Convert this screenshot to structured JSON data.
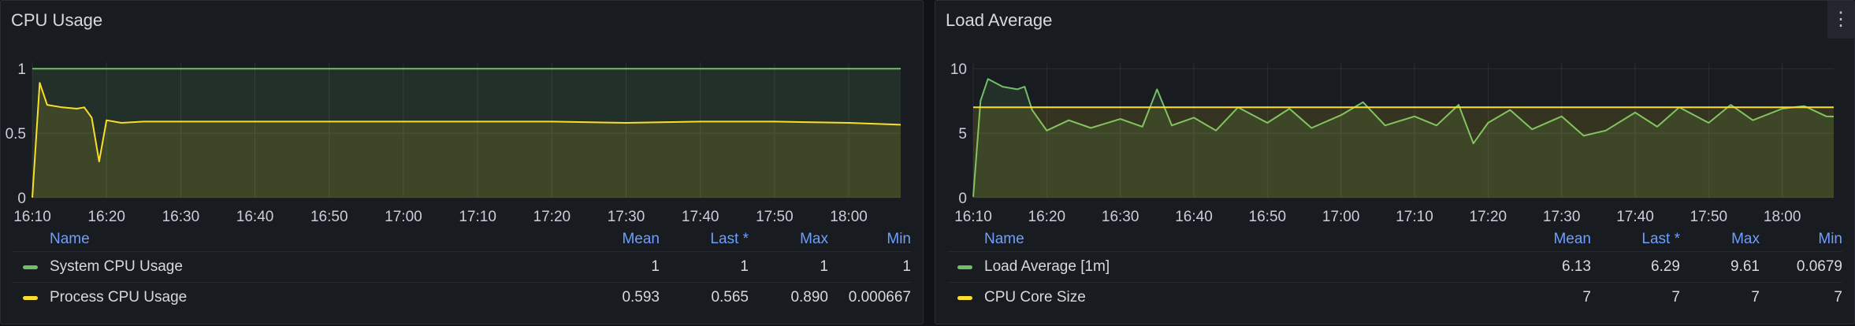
{
  "panels": [
    {
      "title": "CPU Usage",
      "legend_headers": {
        "name": "Name",
        "mean": "Mean",
        "last": "Last *",
        "max": "Max",
        "min": "Min"
      },
      "legend": [
        {
          "name": "System CPU Usage",
          "color": "#73bf69",
          "mean": "1",
          "last": "1",
          "max": "1",
          "min": "1"
        },
        {
          "name": "Process CPU Usage",
          "color": "#fade2a",
          "mean": "0.593",
          "last": "0.565",
          "max": "0.890",
          "min": "0.000667"
        }
      ]
    },
    {
      "title": "Load Average",
      "menu_icon": "more-vertical-icon",
      "legend_headers": {
        "name": "Name",
        "mean": "Mean",
        "last": "Last *",
        "max": "Max",
        "min": "Min"
      },
      "legend": [
        {
          "name": "Load Average [1m]",
          "color": "#73bf69",
          "mean": "6.13",
          "last": "6.29",
          "max": "9.61",
          "min": "0.0679"
        },
        {
          "name": "CPU Core Size",
          "color": "#fade2a",
          "mean": "7",
          "last": "7",
          "max": "7",
          "min": "7"
        }
      ]
    }
  ],
  "chart_data": [
    {
      "type": "area",
      "title": "CPU Usage",
      "x_ticks": [
        "16:10",
        "16:20",
        "16:30",
        "16:40",
        "16:50",
        "17:00",
        "17:10",
        "17:20",
        "17:30",
        "17:40",
        "17:50",
        "18:00"
      ],
      "y_ticks": [
        "0",
        "0.5",
        "1"
      ],
      "ylim": [
        0,
        1.05
      ],
      "grid": true,
      "legend_position": "bottom",
      "series": [
        {
          "name": "System CPU Usage",
          "color": "#73bf69",
          "x": [
            "16:10",
            "18:07"
          ],
          "values": [
            1,
            1
          ]
        },
        {
          "name": "Process CPU Usage",
          "color": "#fade2a",
          "x": [
            "16:10",
            "16:11",
            "16:12",
            "16:14",
            "16:16",
            "16:17",
            "16:18",
            "16:19",
            "16:20",
            "16:22",
            "16:25",
            "16:30",
            "16:40",
            "16:50",
            "17:00",
            "17:10",
            "17:20",
            "17:30",
            "17:40",
            "17:50",
            "18:00",
            "18:07"
          ],
          "values": [
            0.0007,
            0.89,
            0.72,
            0.7,
            0.69,
            0.7,
            0.62,
            0.28,
            0.6,
            0.58,
            0.59,
            0.59,
            0.59,
            0.59,
            0.59,
            0.59,
            0.59,
            0.58,
            0.59,
            0.59,
            0.58,
            0.565
          ]
        }
      ]
    },
    {
      "type": "area",
      "title": "Load Average",
      "x_ticks": [
        "16:10",
        "16:20",
        "16:30",
        "16:40",
        "16:50",
        "17:00",
        "17:10",
        "17:20",
        "17:30",
        "17:40",
        "17:50",
        "18:00"
      ],
      "y_ticks": [
        "0",
        "5",
        "10"
      ],
      "ylim": [
        0,
        10.5
      ],
      "grid": true,
      "legend_position": "bottom",
      "series": [
        {
          "name": "Load Average [1m]",
          "color": "#73bf69",
          "x": [
            "16:10",
            "16:11",
            "16:12",
            "16:14",
            "16:16",
            "16:17",
            "16:18",
            "16:20",
            "16:23",
            "16:26",
            "16:30",
            "16:33",
            "16:35",
            "16:37",
            "16:40",
            "16:43",
            "16:46",
            "16:50",
            "16:53",
            "16:56",
            "17:00",
            "17:03",
            "17:06",
            "17:10",
            "17:13",
            "17:16",
            "17:18",
            "17:20",
            "17:23",
            "17:26",
            "17:30",
            "17:33",
            "17:36",
            "17:40",
            "17:43",
            "17:46",
            "17:50",
            "17:53",
            "17:56",
            "18:00",
            "18:03",
            "18:06",
            "18:07"
          ],
          "values": [
            0.07,
            7.5,
            9.2,
            8.6,
            8.4,
            8.6,
            6.8,
            5.2,
            6.0,
            5.4,
            6.1,
            5.5,
            8.4,
            5.6,
            6.2,
            5.2,
            7.0,
            5.8,
            6.9,
            5.4,
            6.4,
            7.4,
            5.6,
            6.3,
            5.6,
            7.2,
            4.2,
            5.8,
            6.8,
            5.3,
            6.3,
            4.8,
            5.2,
            6.6,
            5.5,
            7.0,
            5.8,
            7.2,
            6.0,
            6.9,
            7.1,
            6.3,
            6.29
          ]
        },
        {
          "name": "CPU Core Size",
          "color": "#fade2a",
          "x": [
            "16:10",
            "18:07"
          ],
          "values": [
            7,
            7
          ]
        }
      ]
    }
  ]
}
